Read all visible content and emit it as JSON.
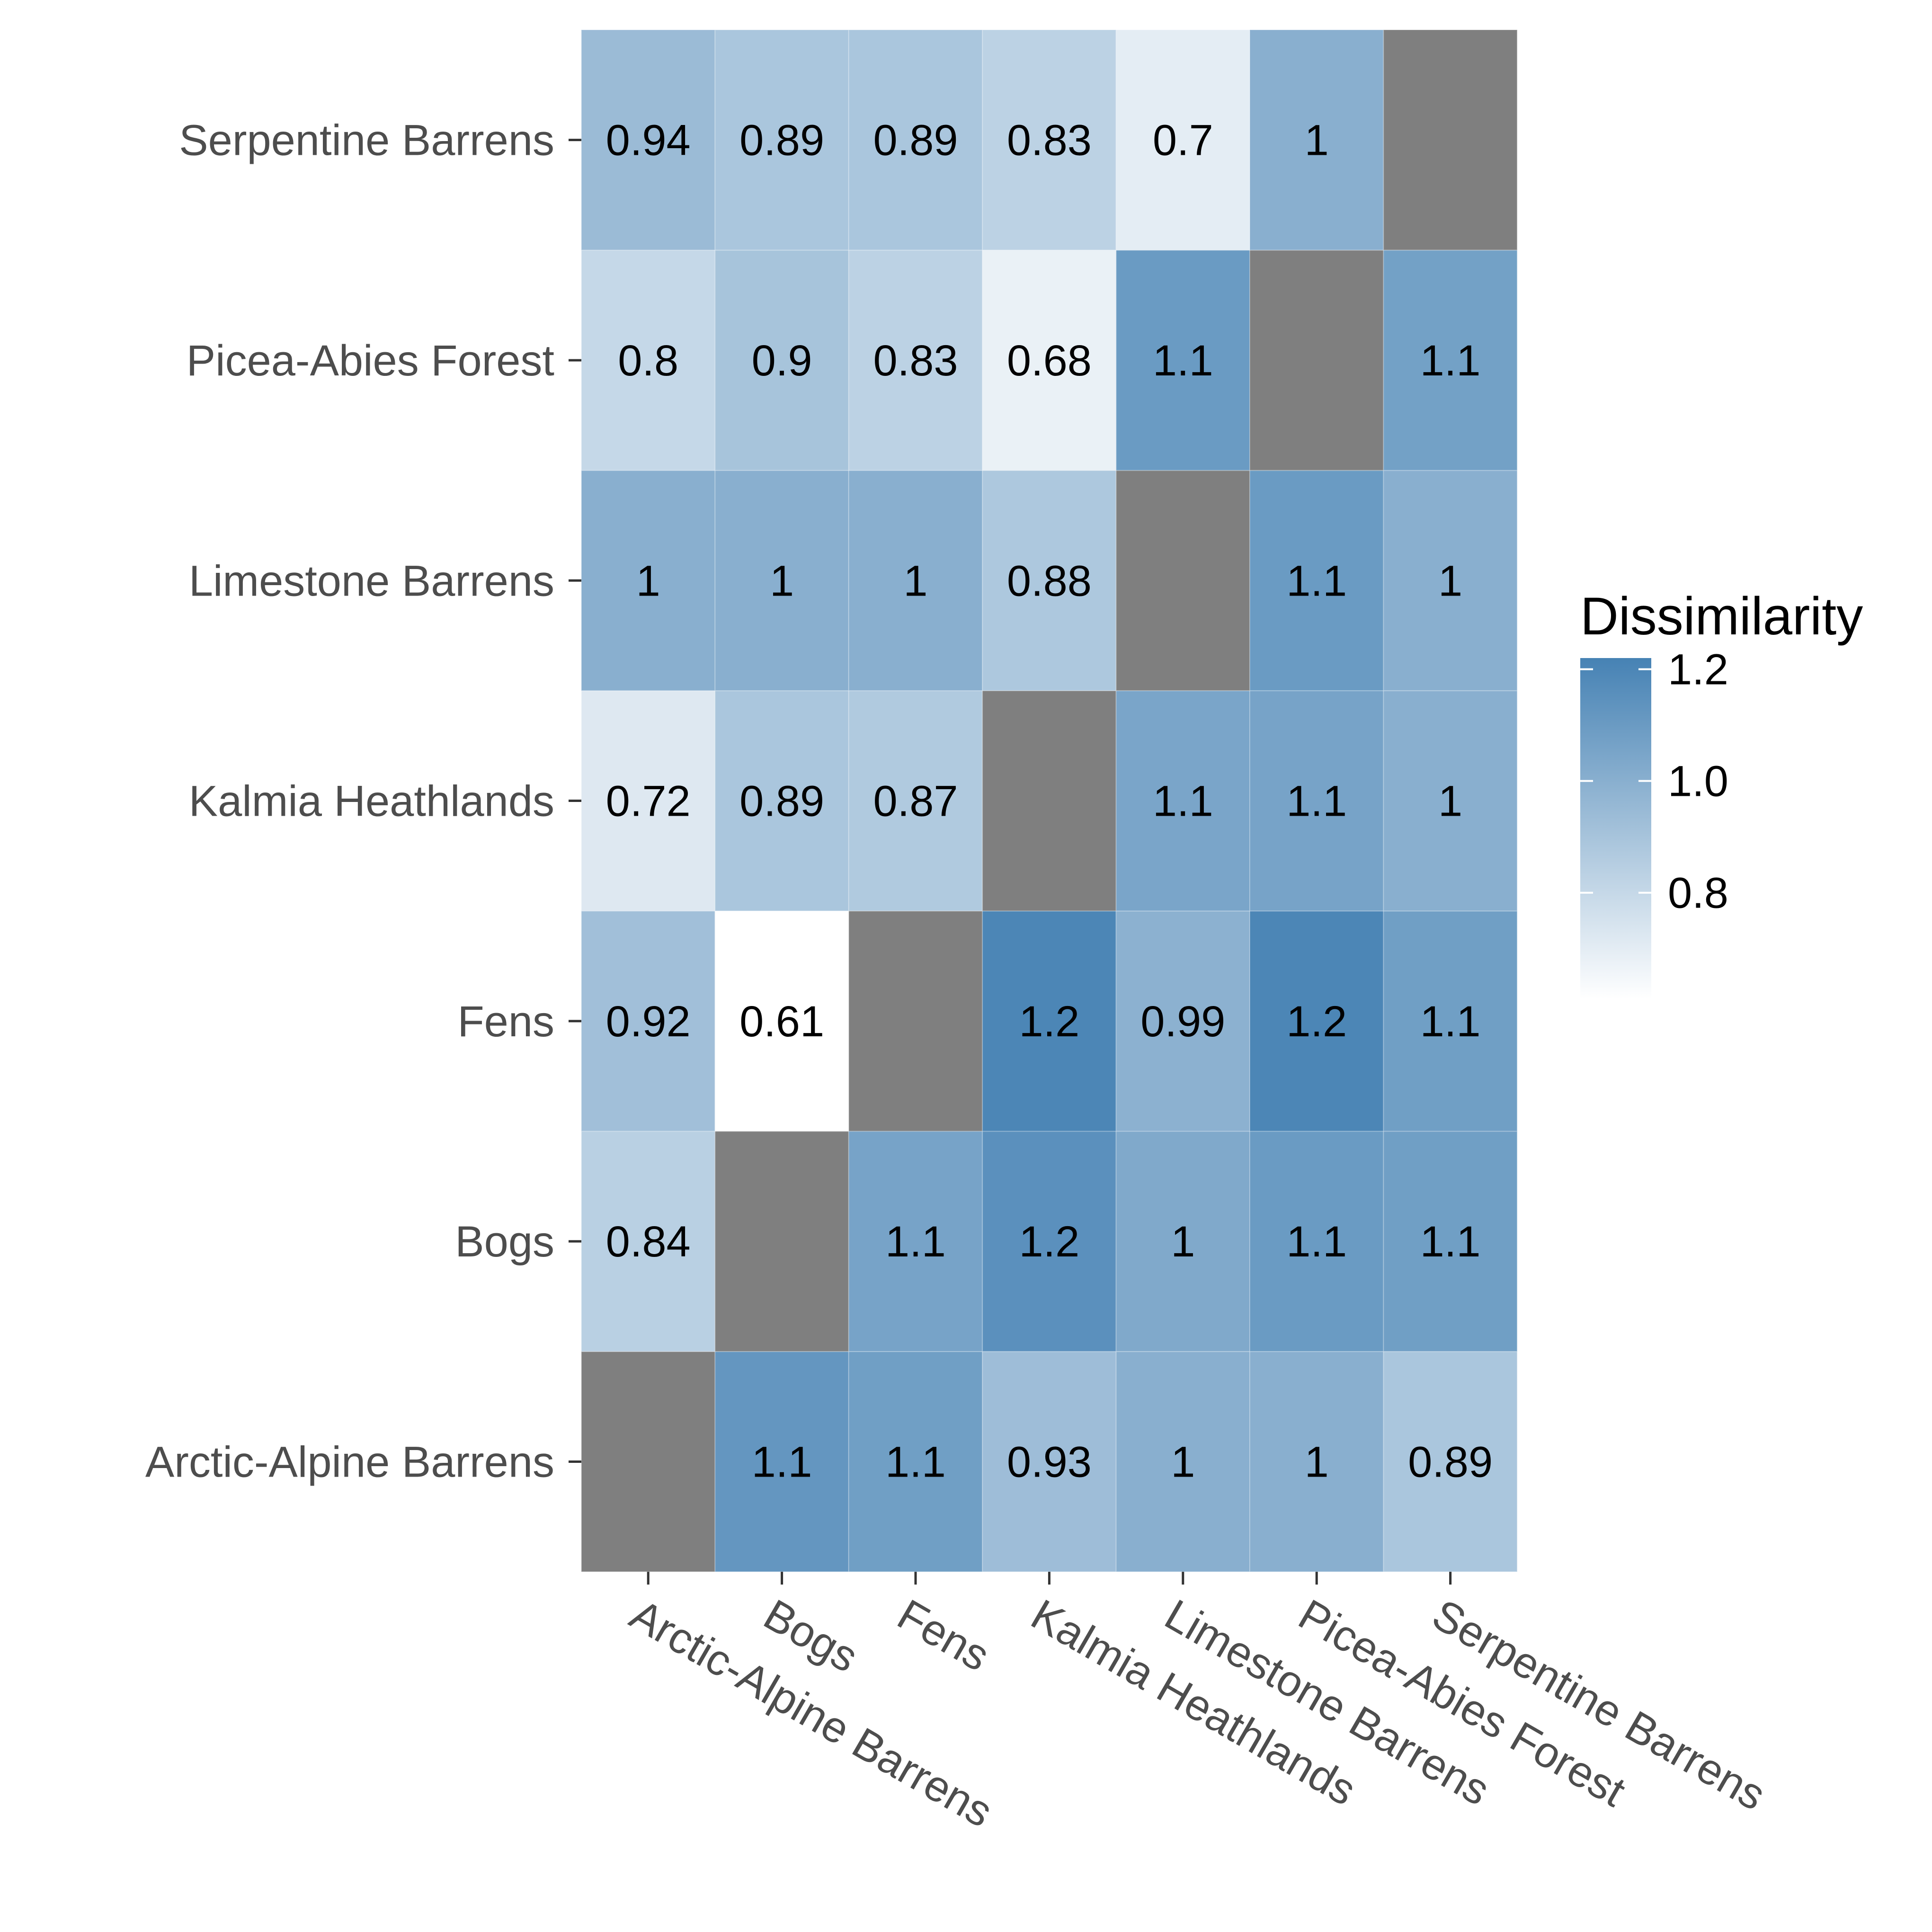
{
  "chart_data": {
    "type": "heatmap",
    "x_categories": [
      "Arctic-Alpine Barrens",
      "Bogs",
      "Fens",
      "Kalmia Heathlands",
      "Limestone Barrens",
      "Picea-Abies Forest",
      "Serpentine Barrens"
    ],
    "y_categories": [
      "Arctic-Alpine Barrens",
      "Bogs",
      "Fens",
      "Kalmia Heathlands",
      "Limestone Barrens",
      "Picea-Abies Forest",
      "Serpentine Barrens"
    ],
    "values": [
      [
        null,
        1.1,
        1.1,
        0.93,
        1,
        1,
        0.89
      ],
      [
        0.84,
        null,
        1.1,
        1.2,
        1,
        1.1,
        1.1
      ],
      [
        0.92,
        0.61,
        null,
        1.2,
        0.99,
        1.2,
        1.1
      ],
      [
        0.72,
        0.89,
        0.87,
        null,
        1.1,
        1.1,
        1
      ],
      [
        1,
        1,
        1,
        0.88,
        null,
        1.1,
        1
      ],
      [
        0.8,
        0.9,
        0.83,
        0.68,
        1.1,
        null,
        1.1
      ],
      [
        0.94,
        0.89,
        0.89,
        0.83,
        0.7,
        1,
        null
      ]
    ],
    "color_values": [
      [
        null,
        1.12,
        1.08,
        0.93,
        1.0,
        1.0,
        0.89
      ],
      [
        0.84,
        null,
        1.06,
        1.15,
        1.03,
        1.1,
        1.08
      ],
      [
        0.92,
        0.61,
        null,
        1.2,
        0.99,
        1.2,
        1.08
      ],
      [
        0.72,
        0.89,
        0.87,
        null,
        1.05,
        1.06,
        1.0
      ],
      [
        1.0,
        1.0,
        1.0,
        0.88,
        null,
        1.1,
        1.0
      ],
      [
        0.8,
        0.9,
        0.83,
        0.68,
        1.1,
        null,
        1.07
      ],
      [
        0.94,
        0.89,
        0.89,
        0.83,
        0.7,
        1.0,
        null
      ]
    ],
    "legend": {
      "title": "Dissimilarity",
      "ticks": [
        0.8,
        1.0,
        1.2
      ],
      "tick_labels": [
        "0.8",
        "1.0",
        "1.2"
      ],
      "min": 0.61,
      "max": 1.22,
      "low_color": "#ffffff",
      "high_color": "#4682b4",
      "placement": "right"
    },
    "missing_color": "#7f7f7f"
  }
}
